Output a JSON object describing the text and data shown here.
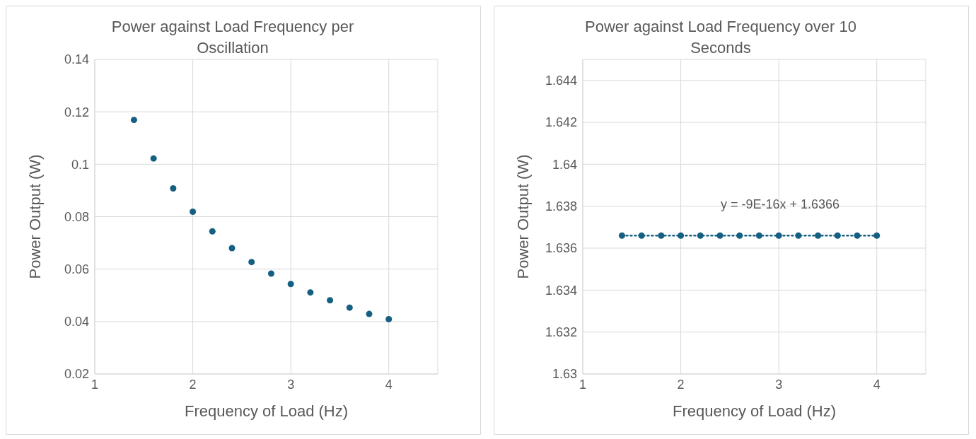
{
  "chart_data": [
    {
      "type": "scatter",
      "title": "Power against Load Frequency per Oscillation",
      "xlabel": "Frequency of Load (Hz)",
      "ylabel": "Power Output (W)",
      "x": [
        1.4,
        1.6,
        1.8,
        2.0,
        2.2,
        2.4,
        2.6,
        2.8,
        3.0,
        3.2,
        3.4,
        3.6,
        3.8,
        4.0
      ],
      "series": [
        {
          "color": "#156082",
          "values": [
            0.1169,
            0.1022,
            0.0908,
            0.0819,
            0.0744,
            0.068,
            0.0627,
            0.0583,
            0.0543,
            0.0511,
            0.0481,
            0.0453,
            0.0429,
            0.0409
          ]
        }
      ],
      "xlim": [
        1,
        4.5
      ],
      "xticks": [
        1,
        2,
        3,
        4
      ],
      "ylim": [
        0.02,
        0.14
      ],
      "yticks": [
        0.02,
        0.04,
        0.06,
        0.08,
        0.1,
        0.12,
        0.14
      ],
      "grid": true,
      "marker": "circle"
    },
    {
      "type": "scatter",
      "title": "Power against Load Frequency over 10 Seconds",
      "xlabel": "Frequency of Load (Hz)",
      "ylabel": "Power Output (W)",
      "x": [
        1.4,
        1.6,
        1.8,
        2.0,
        2.2,
        2.4,
        2.6,
        2.8,
        3.0,
        3.2,
        3.4,
        3.6,
        3.8,
        4.0
      ],
      "series": [
        {
          "color": "#156082",
          "values": [
            1.6366,
            1.6366,
            1.6366,
            1.6366,
            1.6366,
            1.6366,
            1.6366,
            1.6366,
            1.6366,
            1.6366,
            1.6366,
            1.6366,
            1.6366,
            1.6366
          ]
        },
        {
          "type": "line",
          "color": "#156082",
          "line_style": "dotted",
          "marker": "none",
          "x": [
            1.4,
            4.0
          ],
          "values": [
            1.6366,
            1.6366
          ]
        }
      ],
      "annotations": [
        "y = -9E-16x + 1.6366"
      ],
      "xlim": [
        1,
        4.5
      ],
      "xticks": [
        1,
        2,
        3,
        4
      ],
      "ylim": [
        1.63,
        1.645
      ],
      "yticks": [
        1.63,
        1.632,
        1.634,
        1.636,
        1.638,
        1.64,
        1.642,
        1.644
      ],
      "grid": true,
      "marker": "circle"
    }
  ]
}
